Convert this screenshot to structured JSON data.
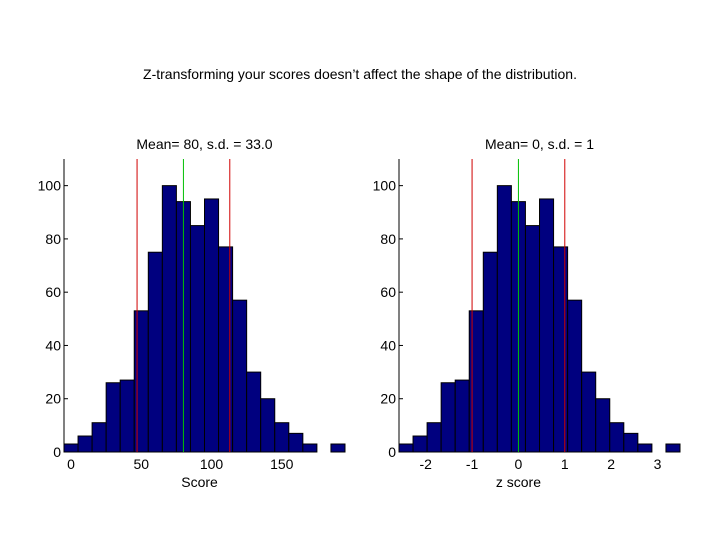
{
  "slide": {
    "title": "Z-transforming your scores doesn’t affect the shape of the distribution."
  },
  "colors": {
    "bar_fill": "#00007f",
    "bar_edge": "#000000",
    "mean_line": "#00c000",
    "sd_line": "#d00000"
  },
  "chart_data": [
    {
      "type": "bar",
      "title": "Mean=  80, s.d. = 33.0",
      "xlabel": "Score",
      "ylabel": "",
      "bin_width": 10,
      "bin_starts": [
        -5,
        5,
        15,
        25,
        35,
        45,
        55,
        65,
        75,
        85,
        95,
        105,
        115,
        125,
        135,
        145,
        155,
        165,
        175,
        185
      ],
      "values": [
        3,
        6,
        11,
        26,
        27,
        53,
        75,
        100,
        94,
        85,
        95,
        77,
        57,
        30,
        20,
        11,
        7,
        3,
        0,
        3
      ],
      "xlim": [
        -5,
        195
      ],
      "ylim": [
        0,
        110
      ],
      "xticks": [
        0,
        50,
        100,
        150
      ],
      "xtick_labels": [
        "0",
        "50",
        "100",
        "150"
      ],
      "yticks": [
        0,
        20,
        40,
        60,
        80,
        100
      ],
      "ytick_labels": [
        "0",
        "20",
        "40",
        "60",
        "80",
        "100"
      ],
      "mean": 80,
      "sd_lines": [
        47,
        113
      ]
    },
    {
      "type": "bar",
      "title": "Mean= 0, s.d. = 1",
      "xlabel": "z score",
      "ylabel": "",
      "bin_width": 0.303,
      "bin_starts": [
        -2.576,
        -2.273,
        -1.97,
        -1.667,
        -1.364,
        -1.061,
        -0.758,
        -0.455,
        -0.152,
        0.152,
        0.455,
        0.758,
        1.061,
        1.364,
        1.667,
        1.97,
        2.273,
        2.576,
        2.879,
        3.182
      ],
      "values": [
        3,
        6,
        11,
        26,
        27,
        53,
        75,
        100,
        94,
        85,
        95,
        77,
        57,
        30,
        20,
        11,
        7,
        3,
        0,
        3
      ],
      "xlim": [
        -2.576,
        3.485
      ],
      "ylim": [
        0,
        110
      ],
      "xticks": [
        -2,
        -1,
        0,
        1,
        2,
        3
      ],
      "xtick_labels": [
        "-2",
        "-1",
        "0",
        "1",
        "2",
        "3"
      ],
      "yticks": [
        0,
        20,
        40,
        60,
        80,
        100
      ],
      "ytick_labels": [
        "0",
        "20",
        "40",
        "60",
        "80",
        "100"
      ],
      "mean": 0,
      "sd_lines": [
        -1,
        1
      ]
    }
  ]
}
